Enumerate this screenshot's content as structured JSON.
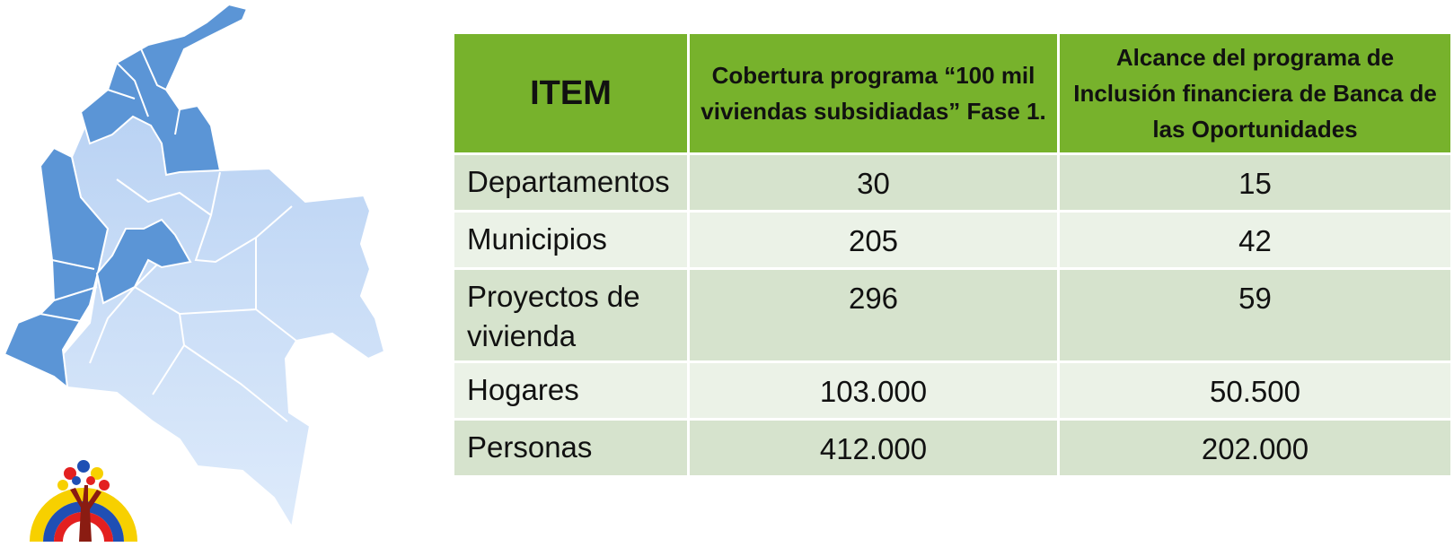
{
  "colors": {
    "header_green": "#77b22c",
    "row_dark": "#d6e3cd",
    "row_light": "#ebf2e7",
    "map_highlight": "#5b95d6",
    "map_light": "#c5daf6"
  },
  "table": {
    "headers": [
      "ITEM",
      "Cobertura programa “100 mil viviendas subsidiadas” Fase 1.",
      "Alcance del programa de Inclusión financiera de Banca de las Oportunidades"
    ],
    "rows": [
      {
        "item": "Departamentos",
        "cobertura": "30",
        "alcance": "15"
      },
      {
        "item": "Municipios",
        "cobertura": "205",
        "alcance": "42"
      },
      {
        "item": "Proyectos de vivienda",
        "cobertura": "296",
        "alcance": "59"
      },
      {
        "item": "Hogares",
        "cobertura": "103.000",
        "alcance": "50.500"
      },
      {
        "item": "Personas",
        "cobertura": "412.000",
        "alcance": "202.000"
      }
    ]
  }
}
